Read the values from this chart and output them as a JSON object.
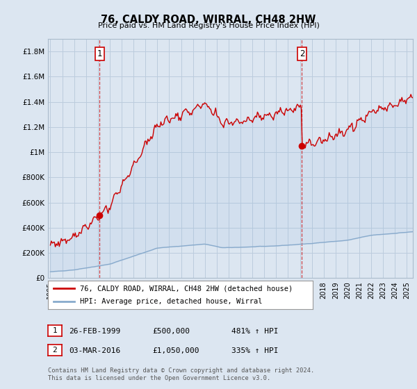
{
  "title": "76, CALDY ROAD, WIRRAL, CH48 2HW",
  "subtitle": "Price paid vs. HM Land Registry's House Price Index (HPI)",
  "ylabel_ticks": [
    "£0",
    "£200K",
    "£400K",
    "£600K",
    "£800K",
    "£1M",
    "£1.2M",
    "£1.4M",
    "£1.6M",
    "£1.8M"
  ],
  "ylabel_values": [
    0,
    200000,
    400000,
    600000,
    800000,
    1000000,
    1200000,
    1400000,
    1600000,
    1800000
  ],
  "ylim": [
    0,
    1900000
  ],
  "xlim_start": 1994.8,
  "xlim_end": 2025.5,
  "sale1_x": 1999.15,
  "sale1_y": 500000,
  "sale2_x": 2016.17,
  "sale2_y": 1050000,
  "marker_color": "#cc0000",
  "line_color": "#cc0000",
  "hpi_color": "#88aacc",
  "fill_color": "#ddeeff",
  "annotation1_label": "1",
  "annotation2_label": "2",
  "legend_line1": "76, CALDY ROAD, WIRRAL, CH48 2HW (detached house)",
  "legend_line2": "HPI: Average price, detached house, Wirral",
  "table_row1": [
    "1",
    "26-FEB-1999",
    "£500,000",
    "481% ↑ HPI"
  ],
  "table_row2": [
    "2",
    "03-MAR-2016",
    "£1,050,000",
    "335% ↑ HPI"
  ],
  "footnote": "Contains HM Land Registry data © Crown copyright and database right 2024.\nThis data is licensed under the Open Government Licence v3.0.",
  "background_color": "#dce6f1",
  "plot_bg_color": "#dce6f1",
  "grid_color": "#bbccdd",
  "dashed_line_color": "#cc0000"
}
